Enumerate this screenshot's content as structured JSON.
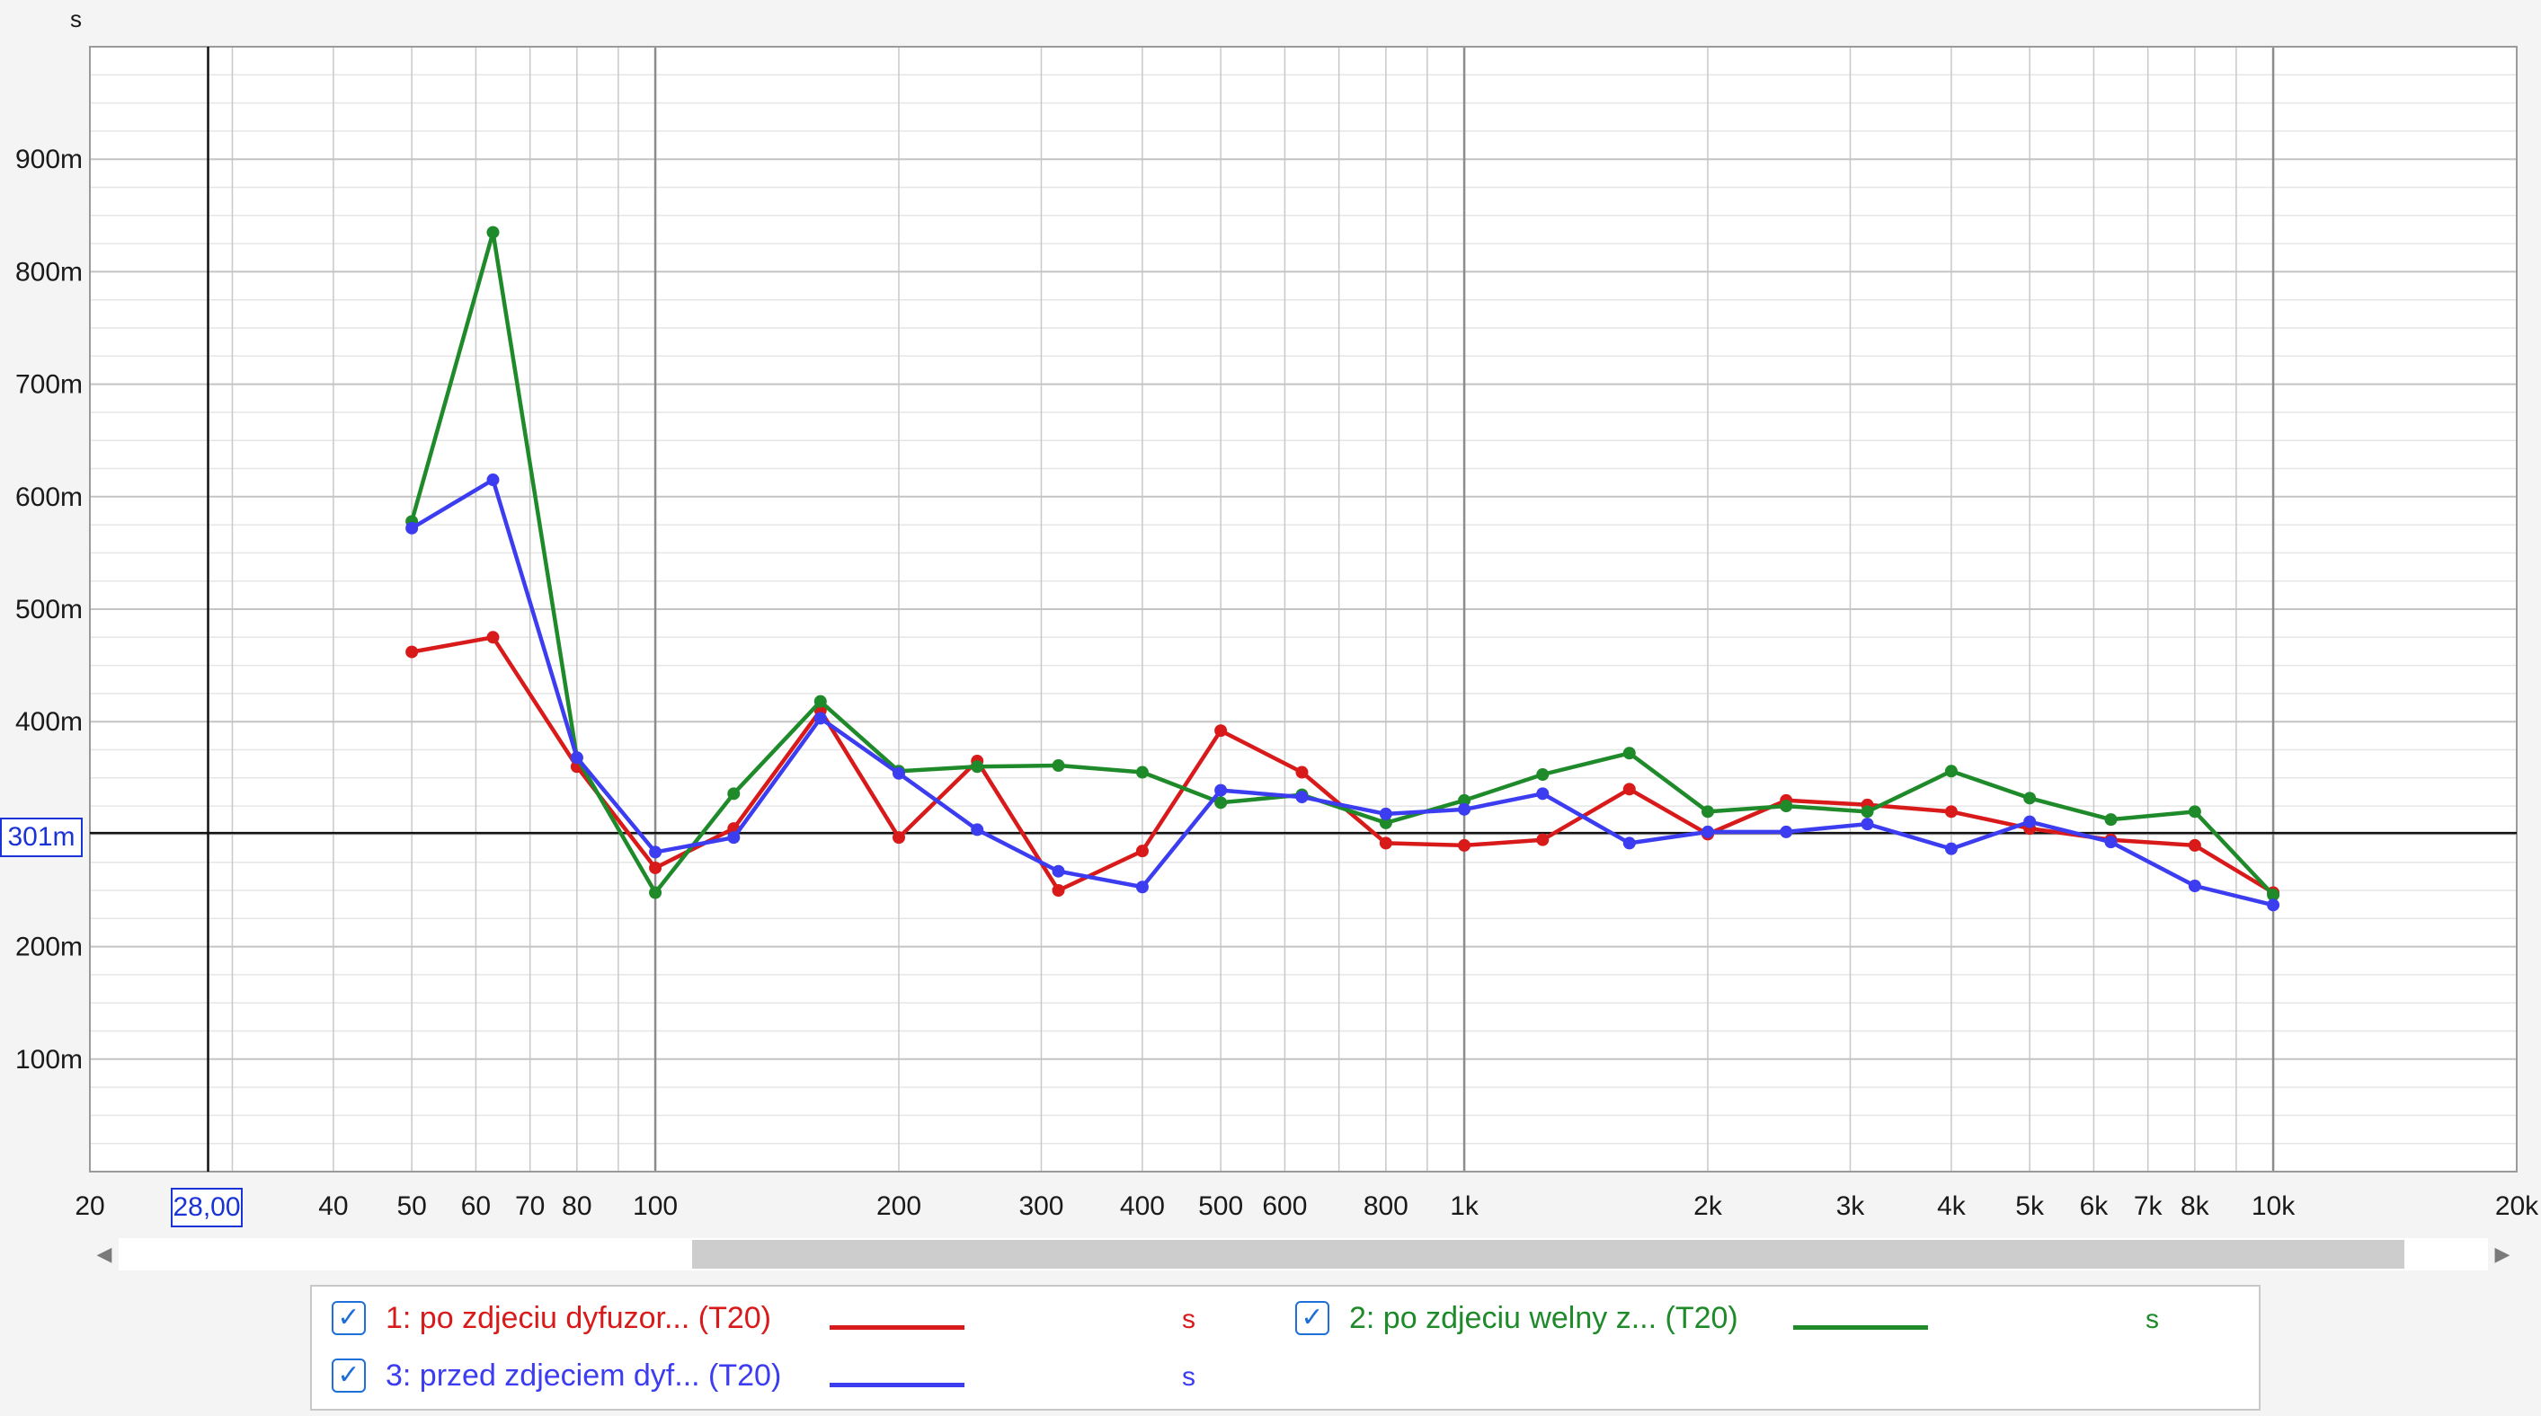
{
  "chart_data": {
    "type": "line",
    "x_scale": "log",
    "xlim": [
      20,
      20000
    ],
    "ylim": [
      0,
      1000
    ],
    "y_unit": "s",
    "y_tick_labels": [
      {
        "value": 100,
        "label": "100m"
      },
      {
        "value": 200,
        "label": "200m"
      },
      {
        "value": 400,
        "label": "400m"
      },
      {
        "value": 500,
        "label": "500m"
      },
      {
        "value": 600,
        "label": "600m"
      },
      {
        "value": 700,
        "label": "700m"
      },
      {
        "value": 800,
        "label": "800m"
      },
      {
        "value": 900,
        "label": "900m"
      }
    ],
    "x_tick_labels": [
      {
        "value": 20,
        "label": "20"
      },
      {
        "value": 40,
        "label": "40"
      },
      {
        "value": 50,
        "label": "50"
      },
      {
        "value": 60,
        "label": "60"
      },
      {
        "value": 70,
        "label": "70"
      },
      {
        "value": 80,
        "label": "80"
      },
      {
        "value": 100,
        "label": "100"
      },
      {
        "value": 200,
        "label": "200"
      },
      {
        "value": 300,
        "label": "300"
      },
      {
        "value": 400,
        "label": "400"
      },
      {
        "value": 500,
        "label": "500"
      },
      {
        "value": 600,
        "label": "600"
      },
      {
        "value": 800,
        "label": "800"
      },
      {
        "value": 1000,
        "label": "1k"
      },
      {
        "value": 2000,
        "label": "2k"
      },
      {
        "value": 3000,
        "label": "3k"
      },
      {
        "value": 4000,
        "label": "4k"
      },
      {
        "value": 5000,
        "label": "5k"
      },
      {
        "value": 6000,
        "label": "6k"
      },
      {
        "value": 7000,
        "label": "7k"
      },
      {
        "value": 8000,
        "label": "8k"
      },
      {
        "value": 10000,
        "label": "10k"
      },
      {
        "value": 20000,
        "label": "20k"
      }
    ],
    "grid": true,
    "cursor": {
      "x": 28,
      "x_label": "28,00",
      "y": 301,
      "y_label": "301m"
    },
    "x": [
      50,
      63,
      80,
      100,
      125,
      160,
      200,
      250,
      315,
      400,
      500,
      630,
      800,
      1000,
      1250,
      1600,
      2000,
      2500,
      3150,
      4000,
      5000,
      6300,
      8000,
      10000
    ],
    "series": [
      {
        "name": "1: po zdjeciu dyfuzor... (T20)",
        "unit": "s",
        "color": "#d81a1a",
        "values": [
          462,
          475,
          360,
          270,
          305,
          410,
          297,
          365,
          250,
          285,
          392,
          355,
          292,
          290,
          295,
          340,
          300,
          330,
          326,
          320,
          305,
          295,
          290,
          248
        ]
      },
      {
        "name": "2: po zdjeciu welny z... (T20)",
        "unit": "s",
        "color": "#1f8a2a",
        "values": [
          578,
          835,
          368,
          248,
          336,
          418,
          356,
          360,
          361,
          355,
          328,
          335,
          310,
          330,
          353,
          372,
          320,
          325,
          320,
          356,
          332,
          313,
          320,
          246
        ]
      },
      {
        "name": "3: przed zdjeciem dyf... (T20)",
        "unit": "s",
        "color": "#3c3cf0",
        "values": [
          572,
          615,
          368,
          284,
          297,
          403,
          354,
          304,
          267,
          253,
          339,
          333,
          318,
          322,
          336,
          292,
          302,
          302,
          309,
          287,
          311,
          293,
          254,
          237
        ]
      }
    ]
  },
  "legend": {
    "items": [
      {
        "label": "1: po zdjeciu dyfuzor... (T20)",
        "unit": "s",
        "checked": "✓"
      },
      {
        "label": "2: po zdjeciu welny z... (T20)",
        "unit": "s",
        "checked": "✓"
      },
      {
        "label": "3: przed zdjeciem dyf... (T20)",
        "unit": "s",
        "checked": "✓"
      }
    ]
  },
  "scrollbar": {
    "left_arrow": "◀",
    "right_arrow": "▶"
  }
}
